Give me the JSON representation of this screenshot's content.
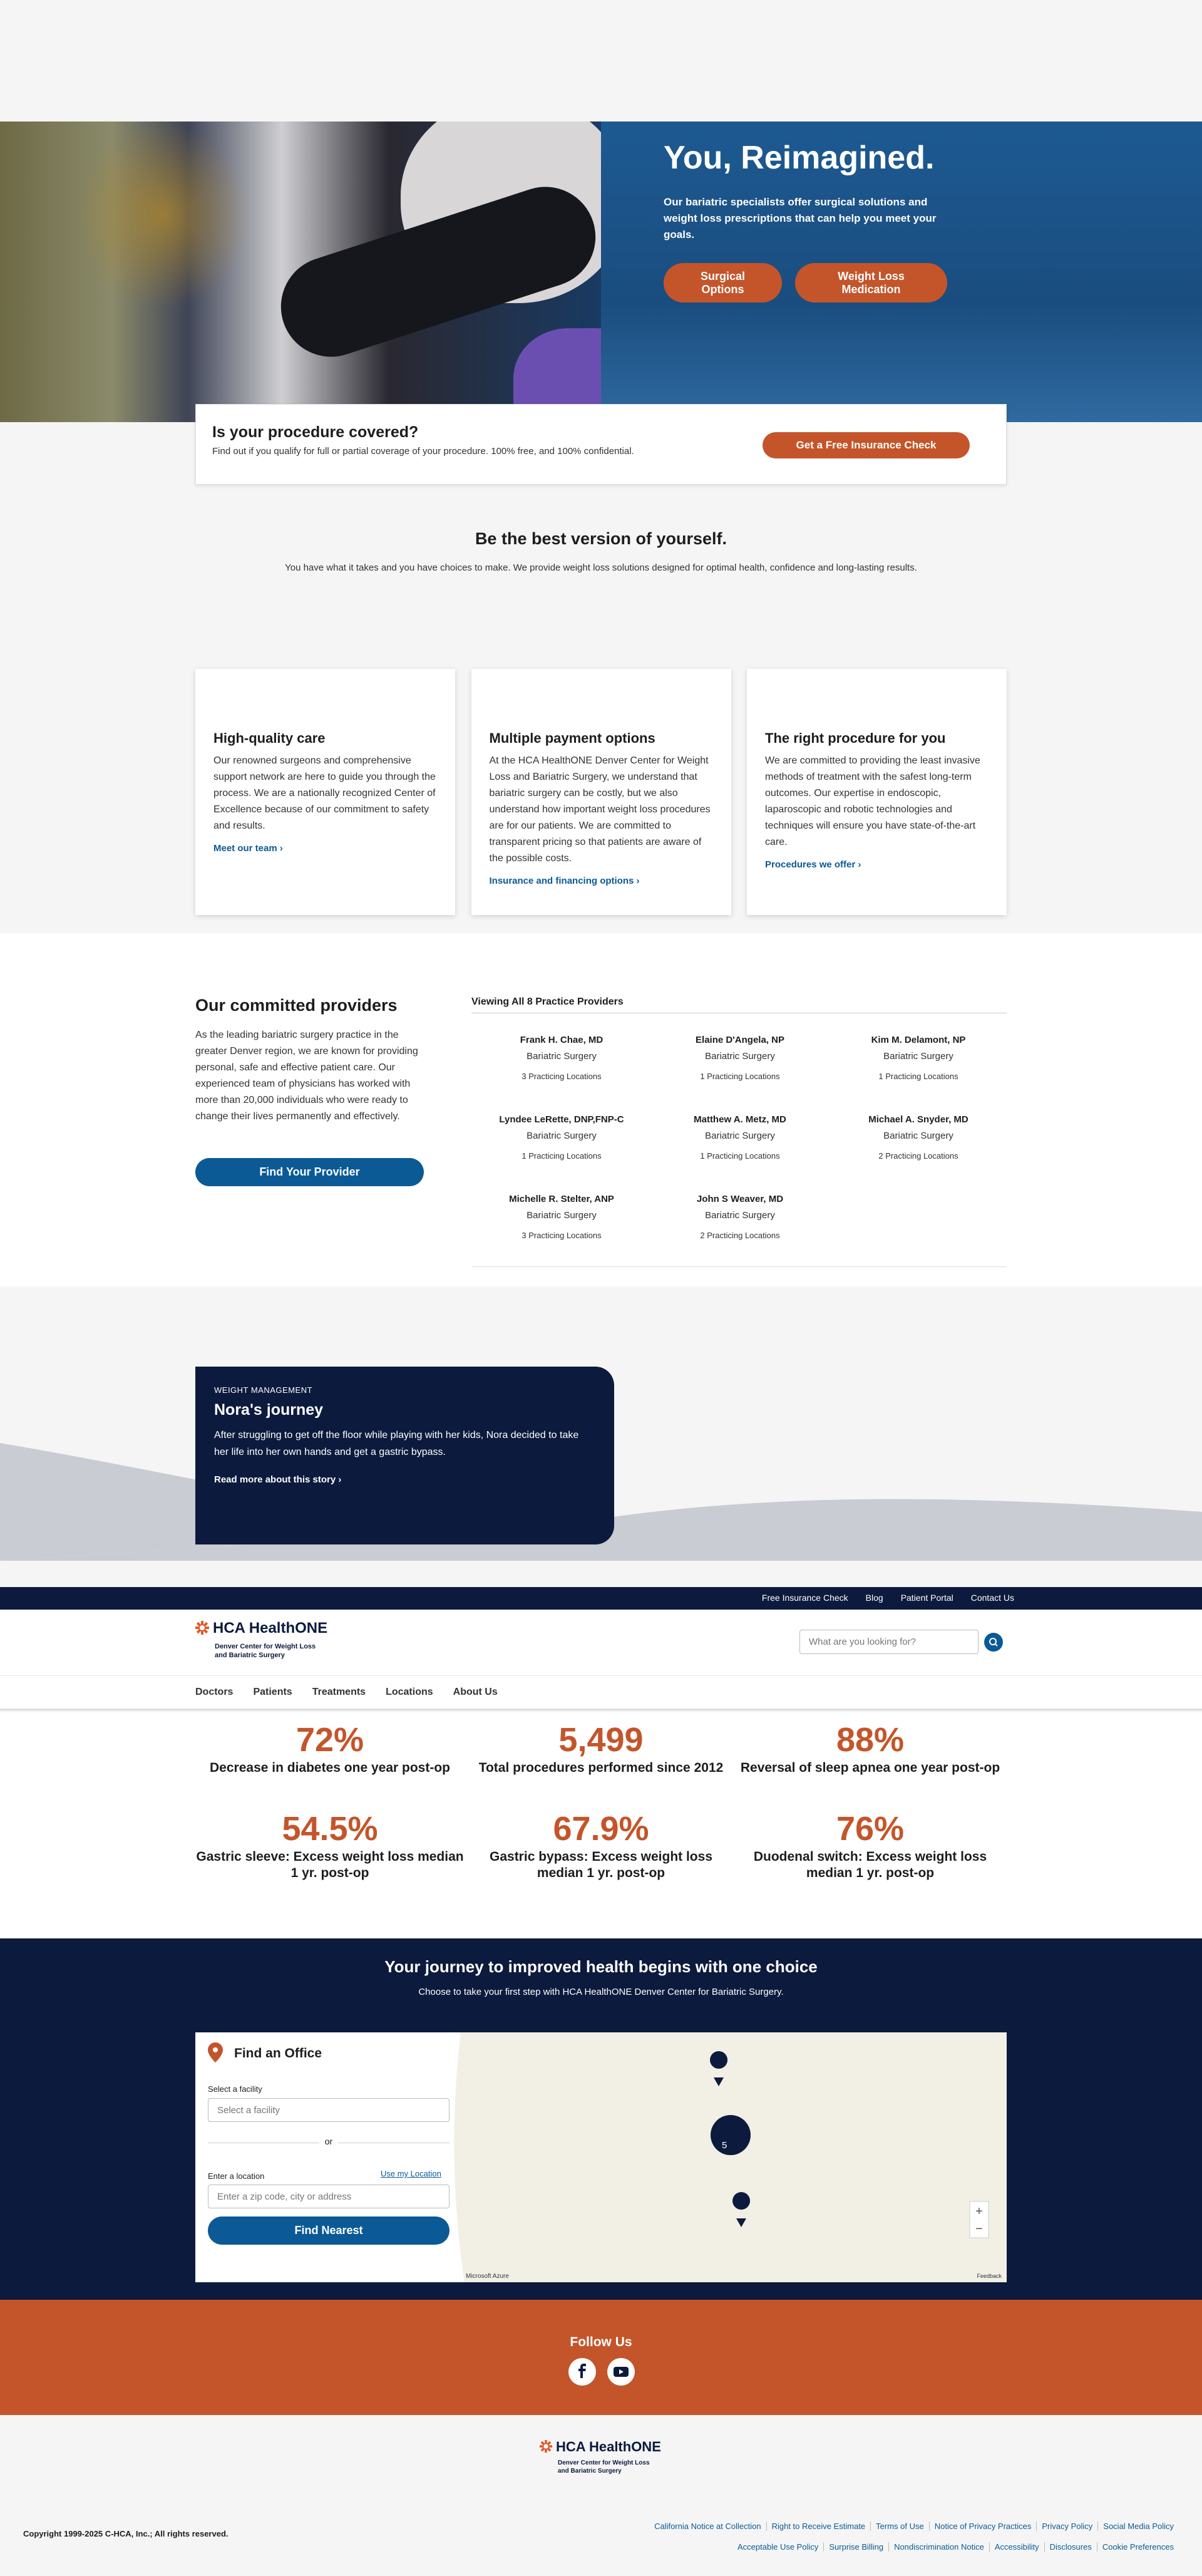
{
  "header": {
    "utility_links": [
      "Free Insurance Check",
      "Blog",
      "Patient Portal",
      "Contact Us"
    ],
    "logo_name": "HCA HealthONE",
    "logo_sub_1": "Denver Center for Weight Loss",
    "logo_sub_2": "and Bariatric Surgery",
    "search_placeholder": "What are you looking for?",
    "nav": [
      "Doctors",
      "Patients",
      "Treatments",
      "Locations",
      "About Us"
    ]
  },
  "hero": {
    "title": "You, Reimagined.",
    "text": "Our bariatric specialists offer surgical solutions and weight loss prescriptions that can help you meet your goals.",
    "buttons": [
      "Surgical Options",
      "Weight Loss Medication"
    ]
  },
  "insurance": {
    "title": "Is your procedure covered?",
    "text": "Find out if you qualify for full or partial coverage of your procedure. 100% free, and 100% confidential.",
    "button": "Get a Free Insurance Check"
  },
  "intro": {
    "title": "Be the best version of yourself.",
    "text": "You have what it takes and you have choices to make. We provide weight loss solutions designed for optimal health, confidence and long-lasting results."
  },
  "cards": [
    {
      "title": "High-quality care",
      "text": "Our renowned surgeons and comprehensive support network are here to guide you through the process. We are a nationally recognized Center of Excellence because of our commitment to safety and results.",
      "link": "Meet our team"
    },
    {
      "title": "Multiple payment options",
      "text": "At the HCA HealthONE Denver Center for Weight Loss and Bariatric Surgery, we understand that bariatric surgery can be costly, but we also understand how important weight loss procedures are for our patients. We are committed to transparent pricing so that patients are aware of the possible costs.",
      "link": "Insurance and financing options"
    },
    {
      "title": "The right procedure for you",
      "text": "We are committed to providing the least invasive methods of treatment with the safest long-term outcomes. Our expertise in endoscopic, laparoscopic and robotic technologies and techniques will ensure you have state-of-the-art care.",
      "link": "Procedures we offer"
    }
  ],
  "providers": {
    "title": "Our committed providers",
    "text": "As the leading bariatric surgery practice in the greater Denver region, we are known for providing personal, safe and effective patient care. Our experienced team of physicians has worked with more than 20,000 individuals who were ready to change their lives permanently and effectively.",
    "button": "Find Your Provider",
    "list_title": "Viewing All 8 Practice Providers",
    "list": [
      {
        "name": "Frank H. Chae, MD",
        "specialty": "Bariatric Surgery",
        "locations": "3 Practicing Locations"
      },
      {
        "name": "Elaine D'Angela, NP",
        "specialty": "Bariatric Surgery",
        "locations": "1 Practicing Locations"
      },
      {
        "name": "Kim M. Delamont, NP",
        "specialty": "Bariatric Surgery",
        "locations": "1 Practicing Locations"
      },
      {
        "name": "Lyndee LeRette, DNP,FNP-C",
        "specialty": "Bariatric Surgery",
        "locations": "1 Practicing Locations"
      },
      {
        "name": "Matthew A. Metz, MD",
        "specialty": "Bariatric Surgery",
        "locations": "1 Practicing Locations"
      },
      {
        "name": "Michael A. Snyder, MD",
        "specialty": "Bariatric Surgery",
        "locations": "2 Practicing Locations"
      },
      {
        "name": "Michelle R. Stelter, ANP",
        "specialty": "Bariatric Surgery",
        "locations": "3 Practicing Locations"
      },
      {
        "name": "John S Weaver, MD",
        "specialty": "Bariatric Surgery",
        "locations": "2 Practicing Locations"
      }
    ]
  },
  "story": {
    "eyebrow": "WEIGHT MANAGEMENT",
    "title": "Nora's journey",
    "text": "After struggling to get off the floor while playing with her kids, Nora decided to take her life into her own hands and get a gastric bypass.",
    "link": "Read more about this story"
  },
  "stats": [
    {
      "value": "72%",
      "label": "Decrease in diabetes one year post-op"
    },
    {
      "value": "5,499",
      "label": "Total procedures performed since 2012"
    },
    {
      "value": "88%",
      "label": "Reversal of sleep apnea one year post-op"
    },
    {
      "value": "54.5%",
      "label": "Gastric sleeve: Excess weight loss median 1 yr. post-op"
    },
    {
      "value": "67.9%",
      "label": "Gastric bypass: Excess weight loss median 1 yr. post-op"
    },
    {
      "value": "76%",
      "label": "Duodenal switch: Excess weight loss median 1 yr. post-op"
    }
  ],
  "locator": {
    "title": "Your journey to improved health begins with one choice",
    "text": "Choose to take your first step with HCA HealthONE Denver Center for Bariatric Surgery.",
    "panel_title": "Find an Office",
    "facility_label": "Select a facility",
    "facility_placeholder": "Select a facility",
    "or": "or",
    "location_label": "Enter a location",
    "use_location": "Use my Location",
    "location_placeholder": "Enter a zip code, city or address",
    "button": "Find Nearest",
    "cluster_count": "5",
    "map_credit": "Microsoft Azure",
    "feedback": "Feedback"
  },
  "social": {
    "title": "Follow Us"
  },
  "footer": {
    "logo_name": "HCA HealthONE",
    "logo_sub_1": "Denver Center for Weight Loss",
    "logo_sub_2": "and Bariatric Surgery",
    "copyright": "Copyright 1999-2025 C-HCA, Inc.; All rights reserved.",
    "links_row_1": [
      "California Notice at Collection",
      "Right to Receive Estimate",
      "Terms of Use",
      "Notice of Privacy Practices",
      "Privacy Policy",
      "Social Media Policy"
    ],
    "links_row_2": [
      "Acceptable Use Policy",
      "Surprise Billing",
      "Nondiscrimination Notice",
      "Accessibility",
      "Disclosures",
      "Cookie Preferences"
    ]
  }
}
